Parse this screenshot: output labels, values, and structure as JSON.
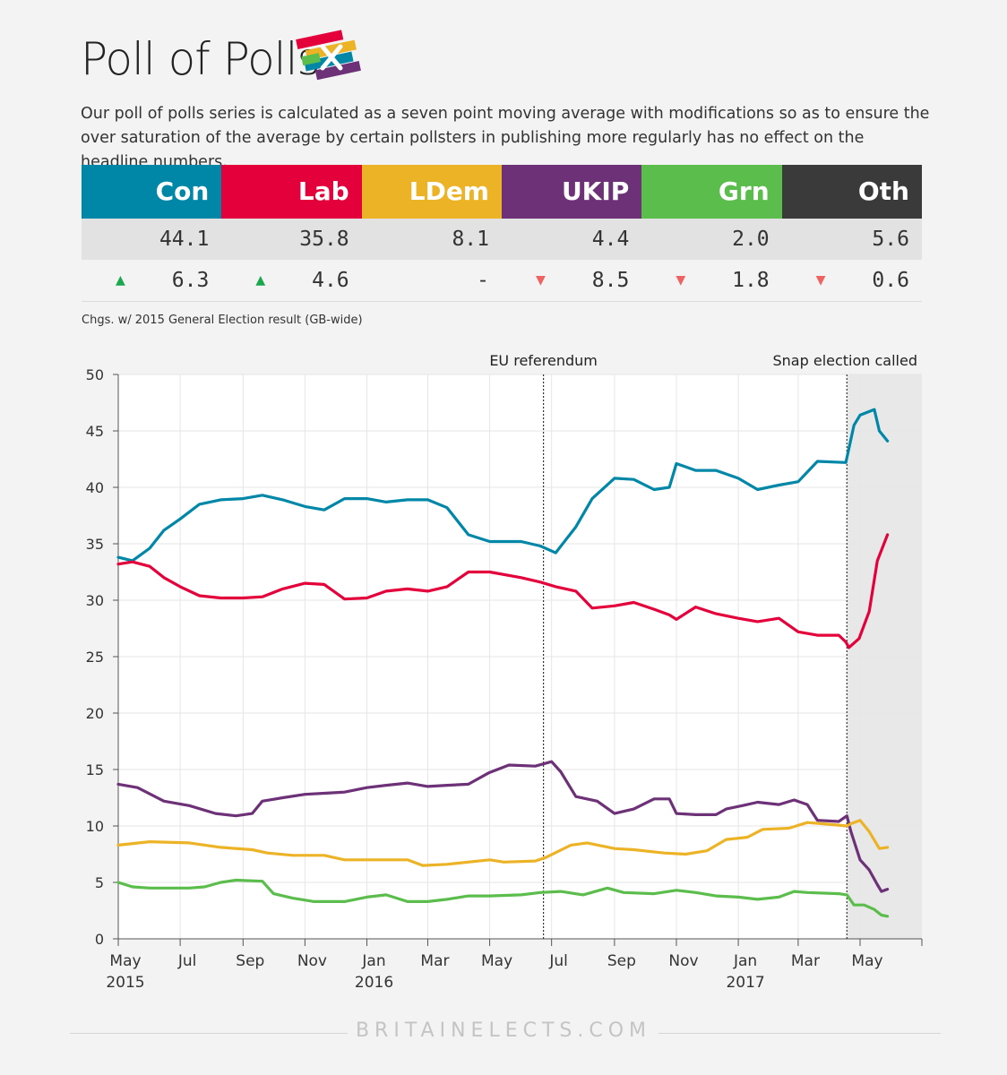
{
  "title": "Poll of Polls",
  "subtitle": "Our poll of polls series is calculated as a seven point moving average with modifications so as to ensure the over saturation of the average by certain pollsters in publishing more regularly has no effect on the headline numbers.",
  "parties": [
    {
      "name": "Con",
      "color": "#0087a8",
      "value": "44.1",
      "change": "6.3",
      "direction": "up"
    },
    {
      "name": "Lab",
      "color": "#e4003b",
      "value": "35.8",
      "change": "4.6",
      "direction": "up"
    },
    {
      "name": "LDem",
      "color": "#edb327",
      "value": "8.1",
      "change": "-",
      "direction": "none"
    },
    {
      "name": "UKIP",
      "color": "#6d3177",
      "value": "4.4",
      "change": "8.5",
      "direction": "down"
    },
    {
      "name": "Grn",
      "color": "#5bbd4b",
      "value": "2.0",
      "change": "1.8",
      "direction": "down"
    },
    {
      "name": "Oth",
      "color": "#3a3a3a",
      "value": "5.6",
      "change": "0.6",
      "direction": "down"
    }
  ],
  "up_color": "#1aa74d",
  "down_color": "#ef6262",
  "note": "Chgs. w/ 2015 General Election result (GB-wide)",
  "footer": "BRITAINELECTS.COM",
  "chart_data": {
    "type": "line",
    "ylim": [
      0,
      50
    ],
    "yticks": [
      0,
      5,
      10,
      15,
      20,
      25,
      30,
      35,
      40,
      45,
      50
    ],
    "xlim": [
      "2015-05-07",
      "2017-06-07"
    ],
    "xticks": [
      {
        "date": "2015-05-01",
        "label": "May",
        "year": "2015"
      },
      {
        "date": "2015-07-01",
        "label": "Jul"
      },
      {
        "date": "2015-09-01",
        "label": "Sep"
      },
      {
        "date": "2015-11-01",
        "label": "Nov"
      },
      {
        "date": "2016-01-01",
        "label": "Jan",
        "year": "2016"
      },
      {
        "date": "2016-03-01",
        "label": "Mar"
      },
      {
        "date": "2016-05-01",
        "label": "May"
      },
      {
        "date": "2016-07-01",
        "label": "Jul"
      },
      {
        "date": "2016-09-01",
        "label": "Sep"
      },
      {
        "date": "2016-11-01",
        "label": "Nov"
      },
      {
        "date": "2017-01-01",
        "label": "Jan",
        "year": "2017"
      },
      {
        "date": "2017-03-01",
        "label": "Mar"
      },
      {
        "date": "2017-05-01",
        "label": "May"
      }
    ],
    "annotations": [
      {
        "date": "2016-06-23",
        "label": "EU referendum"
      },
      {
        "date": "2017-04-18",
        "label": "Snap election called"
      }
    ],
    "shaded_from": "2017-04-18",
    "series": [
      {
        "name": "Con",
        "color": "#0087a8",
        "points": [
          [
            "2015-05-01",
            33.8
          ],
          [
            "2015-05-15",
            33.5
          ],
          [
            "2015-06-01",
            34.6
          ],
          [
            "2015-06-15",
            36.2
          ],
          [
            "2015-07-01",
            37.2
          ],
          [
            "2015-07-20",
            38.5
          ],
          [
            "2015-08-10",
            38.9
          ],
          [
            "2015-09-01",
            39.0
          ],
          [
            "2015-09-20",
            39.3
          ],
          [
            "2015-10-10",
            38.9
          ],
          [
            "2015-11-01",
            38.3
          ],
          [
            "2015-11-20",
            38.0
          ],
          [
            "2015-12-10",
            39.0
          ],
          [
            "2016-01-01",
            39.0
          ],
          [
            "2016-01-20",
            38.7
          ],
          [
            "2016-02-10",
            38.9
          ],
          [
            "2016-03-01",
            38.9
          ],
          [
            "2016-03-20",
            38.2
          ],
          [
            "2016-04-10",
            35.8
          ],
          [
            "2016-05-01",
            35.2
          ],
          [
            "2016-06-01",
            35.2
          ],
          [
            "2016-06-20",
            34.8
          ],
          [
            "2016-07-05",
            34.2
          ],
          [
            "2016-07-25",
            36.5
          ],
          [
            "2016-08-10",
            39.0
          ],
          [
            "2016-09-01",
            40.8
          ],
          [
            "2016-09-20",
            40.7
          ],
          [
            "2016-10-10",
            39.8
          ],
          [
            "2016-10-25",
            40.0
          ],
          [
            "2016-11-01",
            42.1
          ],
          [
            "2016-11-20",
            41.5
          ],
          [
            "2016-12-10",
            41.5
          ],
          [
            "2017-01-01",
            40.8
          ],
          [
            "2017-01-20",
            39.8
          ],
          [
            "2017-02-10",
            40.2
          ],
          [
            "2017-03-01",
            40.5
          ],
          [
            "2017-03-20",
            42.3
          ],
          [
            "2017-04-17",
            42.2
          ],
          [
            "2017-04-25",
            45.5
          ],
          [
            "2017-05-01",
            46.4
          ],
          [
            "2017-05-15",
            46.9
          ],
          [
            "2017-05-20",
            45.0
          ],
          [
            "2017-05-28",
            44.1
          ]
        ]
      },
      {
        "name": "Lab",
        "color": "#e4003b",
        "points": [
          [
            "2015-05-01",
            33.2
          ],
          [
            "2015-05-15",
            33.4
          ],
          [
            "2015-06-01",
            33.0
          ],
          [
            "2015-06-15",
            32.0
          ],
          [
            "2015-07-01",
            31.2
          ],
          [
            "2015-07-20",
            30.4
          ],
          [
            "2015-08-10",
            30.2
          ],
          [
            "2015-09-01",
            30.2
          ],
          [
            "2015-09-20",
            30.3
          ],
          [
            "2015-10-10",
            31.0
          ],
          [
            "2015-11-01",
            31.5
          ],
          [
            "2015-11-20",
            31.4
          ],
          [
            "2015-12-10",
            30.1
          ],
          [
            "2016-01-01",
            30.2
          ],
          [
            "2016-01-20",
            30.8
          ],
          [
            "2016-02-10",
            31.0
          ],
          [
            "2016-03-01",
            30.8
          ],
          [
            "2016-03-20",
            31.2
          ],
          [
            "2016-04-10",
            32.5
          ],
          [
            "2016-05-01",
            32.5
          ],
          [
            "2016-06-01",
            32.0
          ],
          [
            "2016-06-20",
            31.6
          ],
          [
            "2016-07-05",
            31.2
          ],
          [
            "2016-07-25",
            30.8
          ],
          [
            "2016-08-10",
            29.3
          ],
          [
            "2016-09-01",
            29.5
          ],
          [
            "2016-09-20",
            29.8
          ],
          [
            "2016-10-10",
            29.2
          ],
          [
            "2016-10-25",
            28.7
          ],
          [
            "2016-11-01",
            28.3
          ],
          [
            "2016-11-20",
            29.4
          ],
          [
            "2016-12-10",
            28.8
          ],
          [
            "2017-01-01",
            28.4
          ],
          [
            "2017-01-20",
            28.1
          ],
          [
            "2017-02-10",
            28.4
          ],
          [
            "2017-03-01",
            27.2
          ],
          [
            "2017-03-20",
            26.9
          ],
          [
            "2017-04-10",
            26.9
          ],
          [
            "2017-04-17",
            26.3
          ],
          [
            "2017-04-20",
            25.8
          ],
          [
            "2017-04-30",
            26.6
          ],
          [
            "2017-05-10",
            29.0
          ],
          [
            "2017-05-18",
            33.5
          ],
          [
            "2017-05-28",
            35.8
          ]
        ]
      },
      {
        "name": "UKIP",
        "color": "#6d3177",
        "points": [
          [
            "2015-05-01",
            13.7
          ],
          [
            "2015-05-20",
            13.4
          ],
          [
            "2015-06-15",
            12.2
          ],
          [
            "2015-07-10",
            11.8
          ],
          [
            "2015-08-05",
            11.1
          ],
          [
            "2015-08-25",
            10.9
          ],
          [
            "2015-09-10",
            11.1
          ],
          [
            "2015-09-20",
            12.2
          ],
          [
            "2015-10-10",
            12.5
          ],
          [
            "2015-11-01",
            12.8
          ],
          [
            "2015-11-20",
            12.9
          ],
          [
            "2015-12-10",
            13.0
          ],
          [
            "2016-01-01",
            13.4
          ],
          [
            "2016-01-20",
            13.6
          ],
          [
            "2016-02-10",
            13.8
          ],
          [
            "2016-03-01",
            13.5
          ],
          [
            "2016-03-20",
            13.6
          ],
          [
            "2016-04-10",
            13.7
          ],
          [
            "2016-04-30",
            14.7
          ],
          [
            "2016-05-20",
            15.4
          ],
          [
            "2016-06-15",
            15.3
          ],
          [
            "2016-07-01",
            15.7
          ],
          [
            "2016-07-10",
            14.8
          ],
          [
            "2016-07-25",
            12.6
          ],
          [
            "2016-08-15",
            12.2
          ],
          [
            "2016-09-01",
            11.1
          ],
          [
            "2016-09-20",
            11.5
          ],
          [
            "2016-10-10",
            12.4
          ],
          [
            "2016-10-25",
            12.4
          ],
          [
            "2016-11-01",
            11.1
          ],
          [
            "2016-11-20",
            11.0
          ],
          [
            "2016-12-10",
            11.0
          ],
          [
            "2016-12-20",
            11.5
          ],
          [
            "2017-01-05",
            11.8
          ],
          [
            "2017-01-20",
            12.1
          ],
          [
            "2017-02-10",
            11.9
          ],
          [
            "2017-02-25",
            12.3
          ],
          [
            "2017-03-10",
            11.9
          ],
          [
            "2017-03-20",
            10.5
          ],
          [
            "2017-04-10",
            10.4
          ],
          [
            "2017-04-18",
            10.9
          ],
          [
            "2017-04-22",
            9.5
          ],
          [
            "2017-05-01",
            7.0
          ],
          [
            "2017-05-10",
            6.1
          ],
          [
            "2017-05-18",
            4.8
          ],
          [
            "2017-05-22",
            4.2
          ],
          [
            "2017-05-28",
            4.4
          ]
        ]
      },
      {
        "name": "LDem",
        "color": "#edb327",
        "points": [
          [
            "2015-05-01",
            8.3
          ],
          [
            "2015-06-01",
            8.6
          ],
          [
            "2015-07-10",
            8.5
          ],
          [
            "2015-08-10",
            8.1
          ],
          [
            "2015-09-10",
            7.9
          ],
          [
            "2015-09-25",
            7.6
          ],
          [
            "2015-10-20",
            7.4
          ],
          [
            "2015-11-20",
            7.4
          ],
          [
            "2015-12-10",
            7.0
          ],
          [
            "2016-01-10",
            7.0
          ],
          [
            "2016-02-10",
            7.0
          ],
          [
            "2016-02-25",
            6.5
          ],
          [
            "2016-03-20",
            6.6
          ],
          [
            "2016-04-10",
            6.8
          ],
          [
            "2016-05-01",
            7.0
          ],
          [
            "2016-05-15",
            6.8
          ],
          [
            "2016-06-15",
            6.9
          ],
          [
            "2016-06-25",
            7.2
          ],
          [
            "2016-07-20",
            8.3
          ],
          [
            "2016-08-05",
            8.5
          ],
          [
            "2016-09-01",
            8.0
          ],
          [
            "2016-09-20",
            7.9
          ],
          [
            "2016-10-20",
            7.6
          ],
          [
            "2016-11-10",
            7.5
          ],
          [
            "2016-12-01",
            7.8
          ],
          [
            "2016-12-20",
            8.8
          ],
          [
            "2017-01-10",
            9.0
          ],
          [
            "2017-01-25",
            9.7
          ],
          [
            "2017-02-20",
            9.8
          ],
          [
            "2017-03-10",
            10.3
          ],
          [
            "2017-03-25",
            10.2
          ],
          [
            "2017-04-18",
            10.0
          ],
          [
            "2017-04-22",
            10.2
          ],
          [
            "2017-05-01",
            10.5
          ],
          [
            "2017-05-10",
            9.5
          ],
          [
            "2017-05-20",
            8.0
          ],
          [
            "2017-05-28",
            8.1
          ]
        ]
      },
      {
        "name": "Grn",
        "color": "#5bbd4b",
        "points": [
          [
            "2015-05-01",
            5.0
          ],
          [
            "2015-05-15",
            4.6
          ],
          [
            "2015-06-01",
            4.5
          ],
          [
            "2015-07-10",
            4.5
          ],
          [
            "2015-07-25",
            4.6
          ],
          [
            "2015-08-10",
            5.0
          ],
          [
            "2015-08-25",
            5.2
          ],
          [
            "2015-09-20",
            5.1
          ],
          [
            "2015-10-01",
            4.0
          ],
          [
            "2015-10-20",
            3.6
          ],
          [
            "2015-11-10",
            3.3
          ],
          [
            "2015-12-10",
            3.3
          ],
          [
            "2016-01-01",
            3.7
          ],
          [
            "2016-01-20",
            3.9
          ],
          [
            "2016-02-10",
            3.3
          ],
          [
            "2016-03-01",
            3.3
          ],
          [
            "2016-03-20",
            3.5
          ],
          [
            "2016-04-10",
            3.8
          ],
          [
            "2016-05-01",
            3.8
          ],
          [
            "2016-06-01",
            3.9
          ],
          [
            "2016-06-20",
            4.1
          ],
          [
            "2016-07-10",
            4.2
          ],
          [
            "2016-08-01",
            3.9
          ],
          [
            "2016-08-25",
            4.5
          ],
          [
            "2016-09-10",
            4.1
          ],
          [
            "2016-10-10",
            4.0
          ],
          [
            "2016-11-01",
            4.3
          ],
          [
            "2016-11-20",
            4.1
          ],
          [
            "2016-12-10",
            3.8
          ],
          [
            "2017-01-01",
            3.7
          ],
          [
            "2017-01-20",
            3.5
          ],
          [
            "2017-02-10",
            3.7
          ],
          [
            "2017-02-25",
            4.2
          ],
          [
            "2017-03-10",
            4.1
          ],
          [
            "2017-04-10",
            4.0
          ],
          [
            "2017-04-18",
            3.9
          ],
          [
            "2017-04-25",
            3.0
          ],
          [
            "2017-05-05",
            3.0
          ],
          [
            "2017-05-15",
            2.6
          ],
          [
            "2017-05-22",
            2.1
          ],
          [
            "2017-05-28",
            2.0
          ]
        ]
      }
    ]
  }
}
